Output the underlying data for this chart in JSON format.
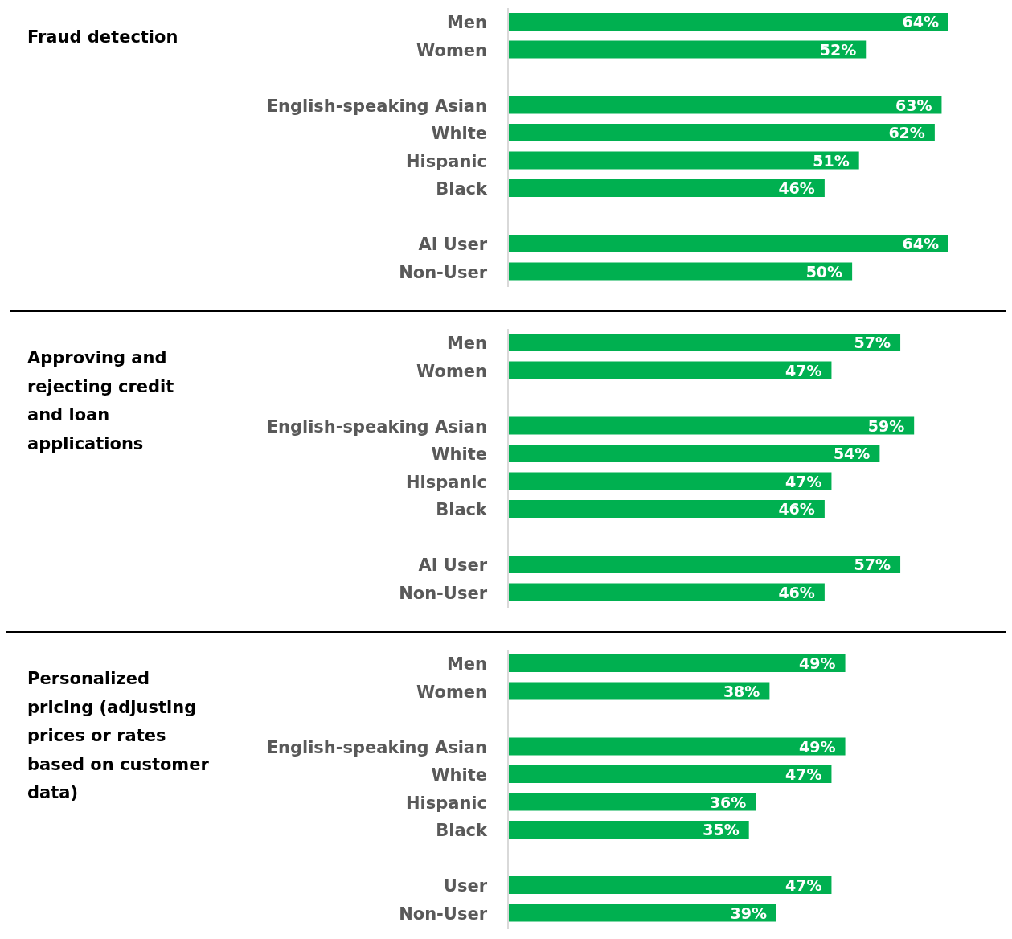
{
  "chart_data": [
    {
      "type": "bar",
      "orientation": "horizontal",
      "title": "Fraud detection",
      "categories": [
        "Men",
        "Women",
        null,
        "English-speaking Asian",
        "White",
        "Hispanic",
        "Black",
        null,
        "AI User",
        "Non-User"
      ],
      "values": [
        64,
        52,
        null,
        63,
        62,
        51,
        46,
        null,
        64,
        50
      ],
      "value_labels": [
        "64%",
        "52%",
        null,
        "63%",
        "62%",
        "51%",
        "46%",
        null,
        "64%",
        "50%"
      ],
      "color": "#00b050",
      "tick_labels": "y"
    },
    {
      "type": "bar",
      "orientation": "horizontal",
      "title": "Approving and rejecting credit and loan applications",
      "categories": [
        "Men",
        "Women",
        null,
        "English-speaking Asian",
        "White",
        "Hispanic",
        "Black",
        null,
        "AI User",
        "Non-User"
      ],
      "values": [
        57,
        47,
        null,
        59,
        54,
        47,
        46,
        null,
        57,
        46
      ],
      "value_labels": [
        "57%",
        "47%",
        null,
        "59%",
        "54%",
        "47%",
        "46%",
        null,
        "57%",
        "46%"
      ],
      "color": "#00b050",
      "tick_labels": "y"
    },
    {
      "type": "bar",
      "orientation": "horizontal",
      "title": "Personalized pricing (adjusting prices or rates based on customer data)",
      "categories": [
        "Men",
        "Women",
        null,
        "English-speaking Asian",
        "White",
        "Hispanic",
        "Black",
        null,
        "User",
        "Non-User"
      ],
      "values": [
        49,
        38,
        null,
        49,
        47,
        36,
        35,
        null,
        47,
        39
      ],
      "value_labels": [
        "49%",
        "38%",
        null,
        "49%",
        "47%",
        "36%",
        "35%",
        null,
        "47%",
        "39%"
      ],
      "color": "#00b050",
      "tick_labels": "y"
    }
  ]
}
